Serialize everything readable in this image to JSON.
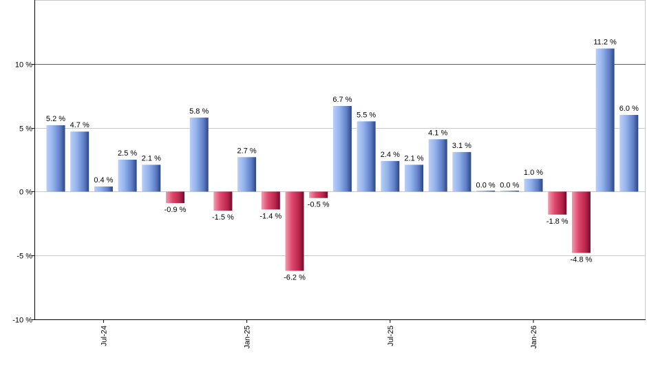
{
  "chart_data": {
    "type": "bar",
    "title": "",
    "xlabel": "",
    "ylabel": "",
    "ylim": [
      -10,
      15
    ],
    "y_ticks": [
      {
        "value": 10,
        "label": "10 %"
      },
      {
        "value": 5,
        "label": "5 %"
      },
      {
        "value": 0,
        "label": "0 %"
      },
      {
        "value": -5,
        "label": "-5 %"
      },
      {
        "value": -10,
        "label": "-10 %"
      }
    ],
    "x_ticks": [
      {
        "index": 2,
        "label": "Jul-24"
      },
      {
        "index": 8,
        "label": "Jan-25"
      },
      {
        "index": 14,
        "label": "Jul-25"
      },
      {
        "index": 20,
        "label": "Jan-26"
      }
    ],
    "reference_line": {
      "value": 10,
      "color": "#2e7d32"
    },
    "grid": true,
    "legend": "none",
    "colors": {
      "positive_light": "#b7cdf6",
      "positive_mid": "#7ea0e0",
      "positive_dark": "#2f4a88",
      "negative_light": "#f08aa0",
      "negative_mid": "#d8345c",
      "negative_dark": "#7a1030",
      "grid": "#c8c8c8",
      "axis": "#000000"
    },
    "values": [
      5.2,
      4.7,
      0.4,
      2.5,
      2.1,
      -0.9,
      5.8,
      -1.5,
      2.7,
      -1.4,
      -6.2,
      -0.5,
      6.7,
      5.5,
      2.4,
      2.1,
      4.1,
      3.1,
      0.0,
      0.0,
      1.0,
      -1.8,
      -4.8,
      11.2,
      6.0
    ],
    "labels": [
      "5.2 %",
      "4.7 %",
      "0.4 %",
      "2.5 %",
      "2.1 %",
      "-0.9 %",
      "5.8 %",
      "-1.5 %",
      "2.7 %",
      "-1.4 %",
      "-6.2 %",
      "-0.5 %",
      "6.7 %",
      "5.5 %",
      "2.4 %",
      "2.1 %",
      "4.1 %",
      "3.1 %",
      "0.0 %",
      "0.0 %",
      "1.0 %",
      "-1.8 %",
      "-4.8 %",
      "11.2 %",
      "6.0 %"
    ]
  }
}
